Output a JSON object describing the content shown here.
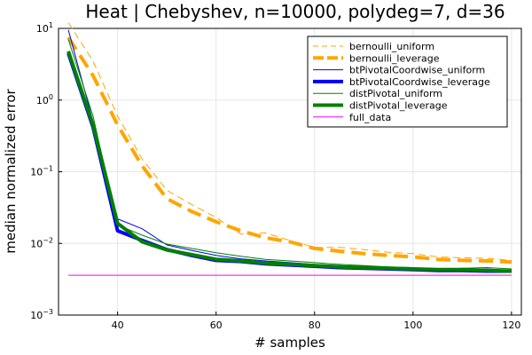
{
  "chart_data": {
    "type": "line",
    "title": "Heat | Chebyshev, n=10000, polydeg=7, d=36",
    "xlabel": "# samples",
    "ylabel": "median normalized error",
    "xlim": [
      28,
      122
    ],
    "ylim": [
      0.001,
      10
    ],
    "yscale": "log",
    "grid": true,
    "legend_position": "top-right",
    "xticks": [
      40,
      60,
      80,
      100,
      120
    ],
    "yticks": [
      {
        "value": 0.001,
        "base": "10",
        "exp": "−3"
      },
      {
        "value": 0.01,
        "base": "10",
        "exp": "−2"
      },
      {
        "value": 0.1,
        "base": "10",
        "exp": "−1"
      },
      {
        "value": 1,
        "base": "10",
        "exp": "0"
      },
      {
        "value": 10,
        "base": "10",
        "exp": "1"
      }
    ],
    "x": [
      30,
      35,
      40,
      45,
      50,
      55,
      60,
      65,
      70,
      75,
      80,
      85,
      90,
      95,
      100,
      105,
      110,
      115,
      120
    ],
    "series": [
      {
        "name": "bernoulli_uniform",
        "color": "#FFA500",
        "width": 1,
        "dash": "8,5",
        "values": [
          12,
          3.5,
          0.6,
          0.15,
          0.055,
          0.035,
          0.023,
          0.0135,
          0.014,
          0.011,
          0.0088,
          0.0088,
          0.0082,
          0.0075,
          0.0072,
          0.0065,
          0.0063,
          0.0062,
          0.0058
        ]
      },
      {
        "name": "bernoulli_leverage",
        "color": "#FFA500",
        "width": 4,
        "dash": "16,8",
        "values": [
          7.5,
          2.2,
          0.45,
          0.12,
          0.042,
          0.028,
          0.02,
          0.015,
          0.012,
          0.0105,
          0.0085,
          0.0078,
          0.0072,
          0.0068,
          0.0065,
          0.006,
          0.0058,
          0.0057,
          0.0055
        ]
      },
      {
        "name": "btPivotalCoordwise_uniform",
        "color": "#0000FF",
        "width": 1,
        "dash": "",
        "values": [
          9.5,
          0.5,
          0.022,
          0.016,
          0.0095,
          0.008,
          0.0068,
          0.0061,
          0.0057,
          0.0054,
          0.0051,
          0.0049,
          0.0047,
          0.0045,
          0.0045,
          0.0043,
          0.0043,
          0.0044,
          0.0042
        ]
      },
      {
        "name": "btPivotalCoordwise_leverage",
        "color": "#0000FF",
        "width": 4,
        "dash": "",
        "values": [
          4.5,
          0.42,
          0.015,
          0.011,
          0.0082,
          0.0068,
          0.0058,
          0.0056,
          0.0052,
          0.005,
          0.0048,
          0.0046,
          0.0045,
          0.0044,
          0.0043,
          0.0042,
          0.0042,
          0.0041,
          0.0041
        ]
      },
      {
        "name": "distPivotal_uniform",
        "color": "#008000",
        "width": 1,
        "dash": "",
        "values": [
          7,
          0.6,
          0.018,
          0.013,
          0.0098,
          0.0085,
          0.0074,
          0.0066,
          0.006,
          0.0057,
          0.0054,
          0.0051,
          0.0049,
          0.0047,
          0.0046,
          0.0043,
          0.0045,
          0.0046,
          0.0044
        ]
      },
      {
        "name": "distPivotal_leverage",
        "color": "#008000",
        "width": 4,
        "dash": "",
        "values": [
          4.8,
          0.45,
          0.019,
          0.0105,
          0.0081,
          0.007,
          0.006,
          0.0057,
          0.0053,
          0.0051,
          0.0049,
          0.0047,
          0.0046,
          0.0045,
          0.0044,
          0.0043,
          0.0043,
          0.0042,
          0.0041
        ]
      },
      {
        "name": "full_data",
        "color": "#FF00FF",
        "width": 1,
        "dash": "",
        "values": [
          0.0036,
          0.0036,
          0.0036,
          0.0036,
          0.0036,
          0.0036,
          0.0036,
          0.0036,
          0.0036,
          0.0036,
          0.0036,
          0.0036,
          0.0036,
          0.0036,
          0.0036,
          0.0036,
          0.0036,
          0.0036,
          0.0036
        ]
      }
    ]
  }
}
